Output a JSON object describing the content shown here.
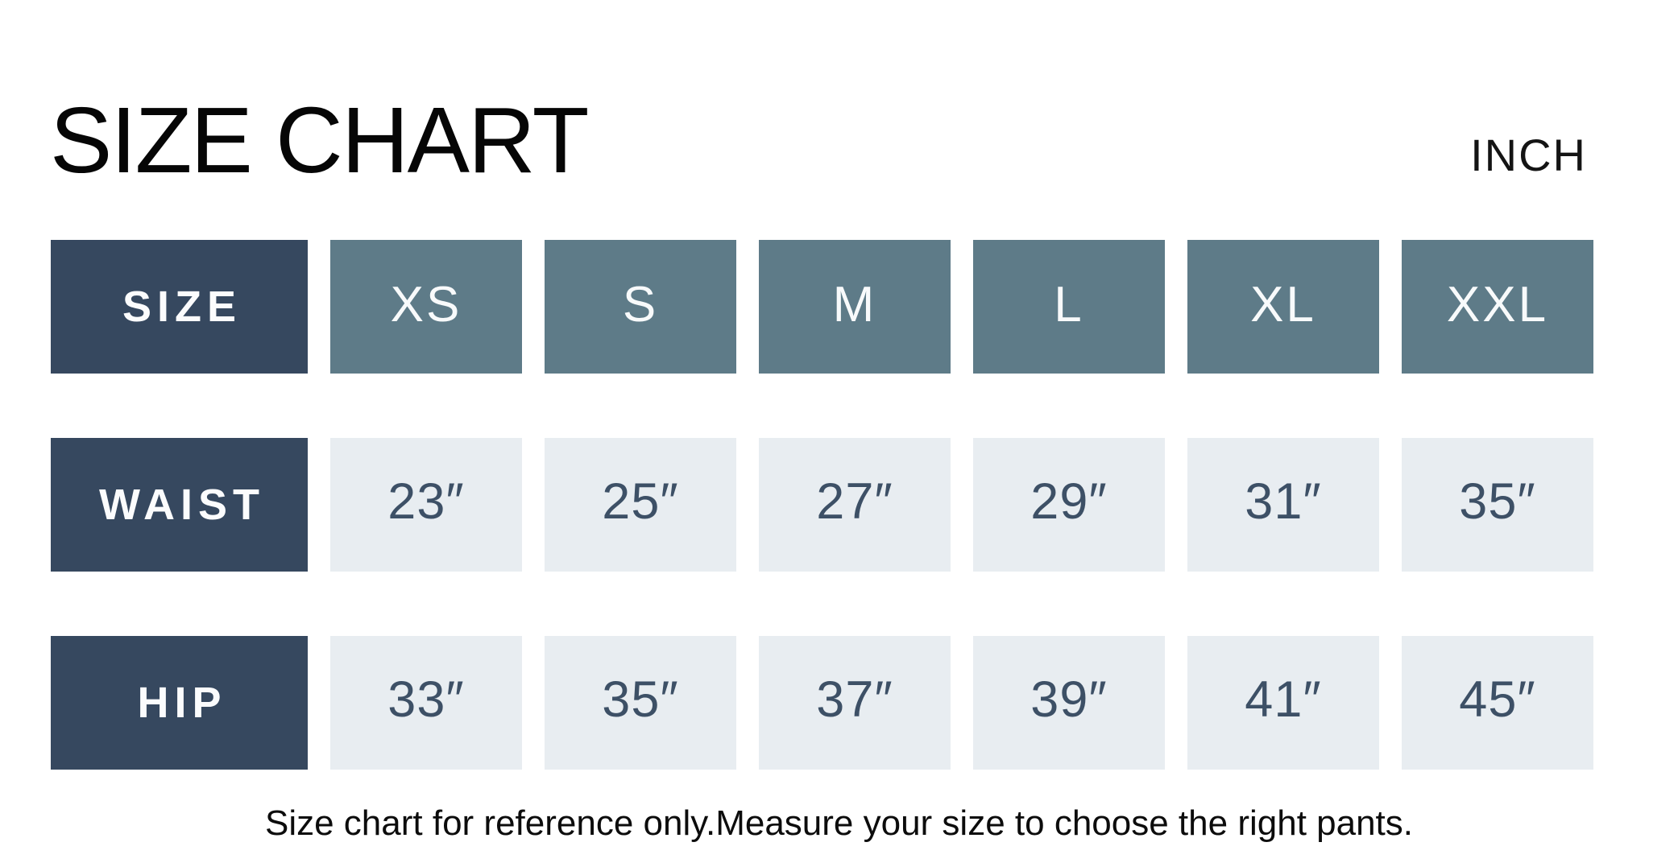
{
  "chart_data": {
    "type": "table",
    "title": "SIZE CHART",
    "unit_label": "INCH",
    "columns": [
      "XS",
      "S",
      "M",
      "L",
      "XL",
      "XXL"
    ],
    "rows": [
      {
        "header": "SIZE",
        "cells": [
          "XS",
          "S",
          "M",
          "L",
          "XL",
          "XXL"
        ]
      },
      {
        "header": "WAIST",
        "cells": [
          "23″",
          "25″",
          "27″",
          "29″",
          "31″",
          "35″"
        ]
      },
      {
        "header": "HIP",
        "cells": [
          "33″",
          "35″",
          "37″",
          "39″",
          "41″",
          "45″"
        ]
      }
    ],
    "waist_inches": [
      23,
      25,
      27,
      29,
      31,
      35
    ],
    "hip_inches": [
      33,
      35,
      37,
      39,
      41,
      45
    ],
    "footnote": "Size chart for reference only.Measure your size to choose the right pants.",
    "layout_hints": {
      "row_header_column": "left",
      "grid": "off",
      "cell_style": "flat solid blocks with white gutters"
    }
  },
  "colors": {
    "background": "#ffffff",
    "row_header_navy": "#36485f",
    "size_cell_slate": "#5e7b88",
    "value_cell_light": "#e8edf1",
    "value_text_slate": "#3d5066",
    "heading_text": "#060606"
  }
}
